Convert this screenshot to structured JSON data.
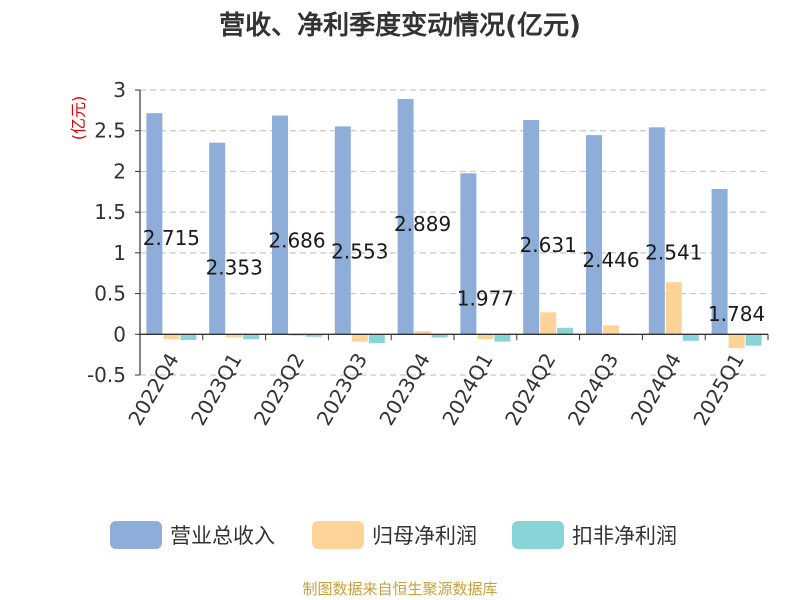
{
  "chart_data": {
    "type": "bar",
    "title": "营收、净利季度变动情况(亿元)",
    "ylabel": "(亿元)",
    "xlabel": "",
    "ylim": [
      -0.5,
      3
    ],
    "yticks": [
      3,
      2.5,
      2,
      1.5,
      1,
      0.5,
      0,
      -0.5
    ],
    "ytick_labels": [
      "3",
      "2.5",
      "2",
      "1.5",
      "1",
      "0.5",
      "0",
      "-0.5"
    ],
    "grid": true,
    "legend_position": "bottom",
    "categories": [
      "2022Q4",
      "2023Q1",
      "2023Q2",
      "2023Q3",
      "2023Q4",
      "2024Q1",
      "2024Q2",
      "2024Q3",
      "2024Q4",
      "2025Q1"
    ],
    "series": [
      {
        "name": "营业总收入",
        "color": "#8eadd8",
        "values": [
          2.715,
          2.353,
          2.686,
          2.553,
          2.889,
          1.977,
          2.631,
          2.446,
          2.541,
          1.784
        ],
        "data_labels": [
          "2.715",
          "2.353",
          "2.686",
          "2.553",
          "2.889",
          "1.977",
          "2.631",
          "2.446",
          "2.541",
          "1.784"
        ]
      },
      {
        "name": "归母净利润",
        "color": "#fdd497",
        "values": [
          -0.06,
          -0.04,
          -0.02,
          -0.09,
          0.04,
          -0.06,
          0.27,
          0.11,
          0.64,
          -0.17
        ]
      },
      {
        "name": "扣非净利润",
        "color": "#88d4d7",
        "values": [
          -0.07,
          -0.06,
          -0.03,
          -0.11,
          -0.04,
          -0.09,
          0.08,
          -0.01,
          -0.08,
          -0.14
        ]
      }
    ],
    "source": "制图数据来自恒生聚源数据库"
  }
}
